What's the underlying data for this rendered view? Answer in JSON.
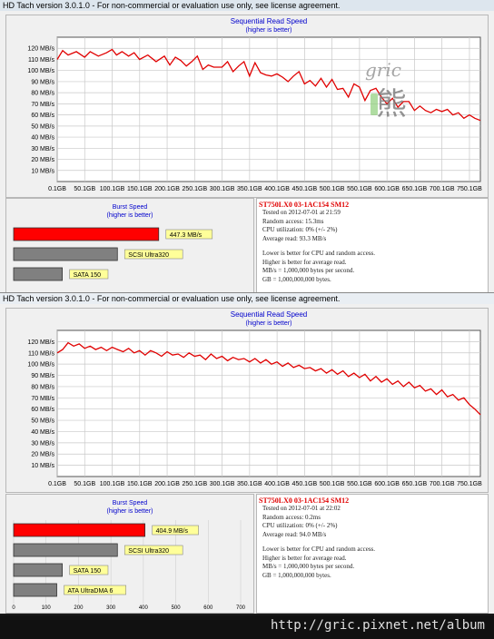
{
  "window1": {
    "title": "HD Tach version 3.0.1.0  - For non-commercial or evaluation use only, see license agreement.",
    "chart_title": "Sequential Read Speed",
    "chart_subtitle": "(higher is better)",
    "burst_title": "Burst Speed",
    "burst_subtitle": "(higher is better)",
    "info": {
      "drive": "ST750LX0 03-1AC154 SM12",
      "tested": "Tested on 2012-07-01 at 21:59",
      "random_access": "Random access: 15.3ms",
      "cpu": "CPU utilization: 0% (+/- 2%)",
      "average_read": "Average read: 93.3 MB/s",
      "note1": "Lower is better for CPU and random access.",
      "note2": "Higher is better for average read.",
      "note3": "MB/s = 1,000,000 bytes per second.",
      "note4": "GB = 1,000,000,000 bytes."
    }
  },
  "window2": {
    "title": "HD Tach version 3.0.1.0  - For non-commercial or evaluation use only, see license agreement.",
    "chart_title": "Sequential Read Speed",
    "chart_subtitle": "(higher is better)",
    "burst_title": "Burst Speed",
    "burst_subtitle": "(higher is better)",
    "info": {
      "drive": "ST750LX0 03-1AC154 SM12",
      "tested": "Tested on 2012-07-01 at 22:02",
      "random_access": "Random access: 0.2ms",
      "cpu": "CPU utilization: 0% (+/- 2%)",
      "average_read": "Average read: 94.0 MB/s",
      "note1": "Lower is better for CPU and random access.",
      "note2": "Higher is better for average read.",
      "note3": "MB/s = 1,000,000 bytes per second.",
      "note4": "GB = 1,000,000,000 bytes."
    }
  },
  "watermark": {
    "text": "gric",
    "glyph": "熊"
  },
  "footer": {
    "url": "http://gric.pixnet.net/album"
  },
  "colors": {
    "line": "#e00000",
    "burst": "#ff0000",
    "ref_bar": "#808080",
    "label_bg": "#ffff99"
  },
  "chart_data": [
    {
      "type": "line",
      "title": "Sequential Read Speed",
      "subtitle": "(higher is better)",
      "x_tick_labels": [
        "0.1GB",
        "50.1GB",
        "100.1GB",
        "150.1GB",
        "200.1GB",
        "250.1GB",
        "300.1GB",
        "350.1GB",
        "400.1GB",
        "450.1GB",
        "500.1GB",
        "550.1GB",
        "600.1GB",
        "650.1GB",
        "700.1GB",
        "750.1GB"
      ],
      "y_tick_labels": [
        "10 MB/s",
        "20 MB/s",
        "30 MB/s",
        "40 MB/s",
        "50 MB/s",
        "60 MB/s",
        "70 MB/s",
        "80 MB/s",
        "90 MB/s",
        "100 MB/s",
        "110 MB/s",
        "120 MB/s"
      ],
      "xlim": [
        0.1,
        770
      ],
      "ylim": [
        0,
        130
      ],
      "grid": true,
      "series": [
        {
          "x": [
            0.1,
            10,
            20,
            35,
            50,
            60,
            75,
            90,
            100,
            108,
            118,
            130,
            140,
            150,
            165,
            180,
            195,
            205,
            215,
            225,
            235,
            245,
            255,
            265,
            275,
            285,
            300,
            310,
            320,
            330,
            340,
            350,
            360,
            370,
            380,
            390,
            400,
            410,
            420,
            430,
            440,
            450,
            460,
            470,
            480,
            490,
            500,
            510,
            520,
            530,
            540,
            550,
            560,
            570,
            580,
            590,
            600,
            610,
            620,
            630,
            640,
            650,
            660,
            670,
            680,
            690,
            700,
            710,
            720,
            730,
            740,
            750,
            760,
            770
          ],
          "y": [
            110,
            118,
            114,
            117,
            112,
            117,
            113,
            116,
            119,
            114,
            117,
            113,
            116,
            110,
            114,
            108,
            113,
            105,
            112,
            109,
            104,
            108,
            113,
            101,
            105,
            103,
            103,
            108,
            99,
            104,
            108,
            95,
            107,
            98,
            96,
            95,
            97,
            94,
            90,
            95,
            99,
            88,
            91,
            86,
            93,
            85,
            92,
            83,
            84,
            76,
            88,
            85,
            73,
            82,
            84,
            76,
            70,
            75,
            67,
            72,
            72,
            64,
            68,
            64,
            62,
            65,
            63,
            65,
            60,
            62,
            57,
            60,
            57,
            55
          ]
        }
      ]
    },
    {
      "type": "bar",
      "title": "Burst Speed",
      "subtitle": "(higher is better)",
      "orientation": "horizontal",
      "categories": [
        "447.3 MB/s",
        "SCSI Ultra320",
        "SATA 150"
      ],
      "values": [
        447.3,
        320,
        150
      ]
    },
    {
      "type": "line",
      "title": "Sequential Read Speed",
      "subtitle": "(higher is better)",
      "x_tick_labels": [
        "0.1GB",
        "50.1GB",
        "100.1GB",
        "150.1GB",
        "200.1GB",
        "250.1GB",
        "300.1GB",
        "350.1GB",
        "400.1GB",
        "450.1GB",
        "500.1GB",
        "550.1GB",
        "600.1GB",
        "650.1GB",
        "700.1GB",
        "750.1GB"
      ],
      "y_tick_labels": [
        "10 MB/s",
        "20 MB/s",
        "30 MB/s",
        "40 MB/s",
        "50 MB/s",
        "60 MB/s",
        "70 MB/s",
        "80 MB/s",
        "90 MB/s",
        "100 MB/s",
        "110 MB/s",
        "120 MB/s"
      ],
      "xlim": [
        0.1,
        770
      ],
      "ylim": [
        0,
        130
      ],
      "grid": true,
      "series": [
        {
          "x": [
            0.1,
            10,
            20,
            30,
            40,
            50,
            60,
            70,
            80,
            90,
            100,
            110,
            120,
            130,
            140,
            150,
            160,
            170,
            180,
            190,
            200,
            210,
            220,
            230,
            240,
            250,
            260,
            270,
            280,
            290,
            300,
            310,
            320,
            330,
            340,
            350,
            360,
            370,
            380,
            390,
            400,
            410,
            420,
            430,
            440,
            450,
            460,
            470,
            480,
            490,
            500,
            510,
            520,
            530,
            540,
            550,
            560,
            570,
            580,
            590,
            600,
            610,
            620,
            630,
            640,
            650,
            660,
            670,
            680,
            690,
            700,
            710,
            720,
            730,
            740,
            750,
            760,
            770
          ],
          "y": [
            110,
            113,
            119,
            116,
            118,
            114,
            116,
            113,
            115,
            112,
            115,
            113,
            111,
            114,
            110,
            112,
            108,
            112,
            110,
            107,
            111,
            108,
            109,
            106,
            110,
            107,
            108,
            104,
            109,
            105,
            107,
            103,
            106,
            104,
            105,
            102,
            105,
            101,
            104,
            100,
            102,
            98,
            101,
            97,
            99,
            96,
            97,
            94,
            96,
            92,
            95,
            91,
            94,
            89,
            92,
            88,
            91,
            85,
            89,
            84,
            87,
            82,
            85,
            80,
            84,
            79,
            81,
            76,
            78,
            73,
            77,
            71,
            73,
            68,
            70,
            64,
            60,
            55
          ]
        }
      ]
    },
    {
      "type": "bar",
      "title": "Burst Speed",
      "subtitle": "(higher is better)",
      "orientation": "horizontal",
      "categories": [
        "404.9 MB/s",
        "SCSI Ultra320",
        "SATA 150",
        "ATA UltraDMA 6"
      ],
      "values": [
        404.9,
        320,
        150,
        133
      ],
      "x_tick_labels": [
        "0",
        "100",
        "200",
        "300",
        "400",
        "500",
        "600",
        "700"
      ],
      "xlim": [
        0,
        700
      ]
    }
  ]
}
